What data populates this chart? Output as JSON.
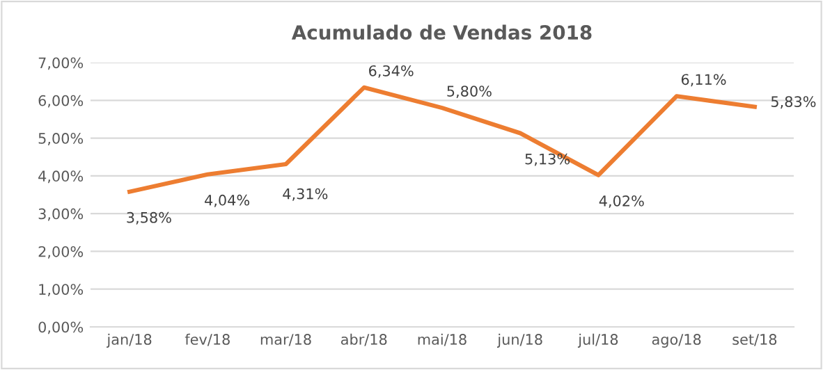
{
  "chart_data": {
    "type": "line",
    "title": "Acumulado de Vendas 2018",
    "categories": [
      "jan/18",
      "fev/18",
      "mar/18",
      "abr/18",
      "mai/18",
      "jun/18",
      "jul/18",
      "ago/18",
      "set/18"
    ],
    "series": [
      {
        "color": "#ed7d31",
        "values": [
          3.58,
          4.04,
          4.31,
          6.34,
          5.8,
          5.13,
          4.02,
          6.11,
          5.83
        ],
        "value_labels": [
          "3,58%",
          "4,04%",
          "4,31%",
          "6,34%",
          "5,80%",
          "5,13%",
          "4,02%",
          "6,11%",
          "5,83%"
        ]
      }
    ],
    "ylim": [
      0,
      7
    ],
    "yticks": [
      {
        "value": 0,
        "label": "0,00%"
      },
      {
        "value": 1,
        "label": "1,00%"
      },
      {
        "value": 2,
        "label": "2,00%"
      },
      {
        "value": 3,
        "label": "3,00%"
      },
      {
        "value": 4,
        "label": "4,00%"
      },
      {
        "value": 5,
        "label": "5,00%"
      },
      {
        "value": 6,
        "label": "6,00%"
      },
      {
        "value": 7,
        "label": "7,00%"
      }
    ],
    "grid": "y",
    "marker": "none",
    "line_style": "solid",
    "legend": false
  }
}
